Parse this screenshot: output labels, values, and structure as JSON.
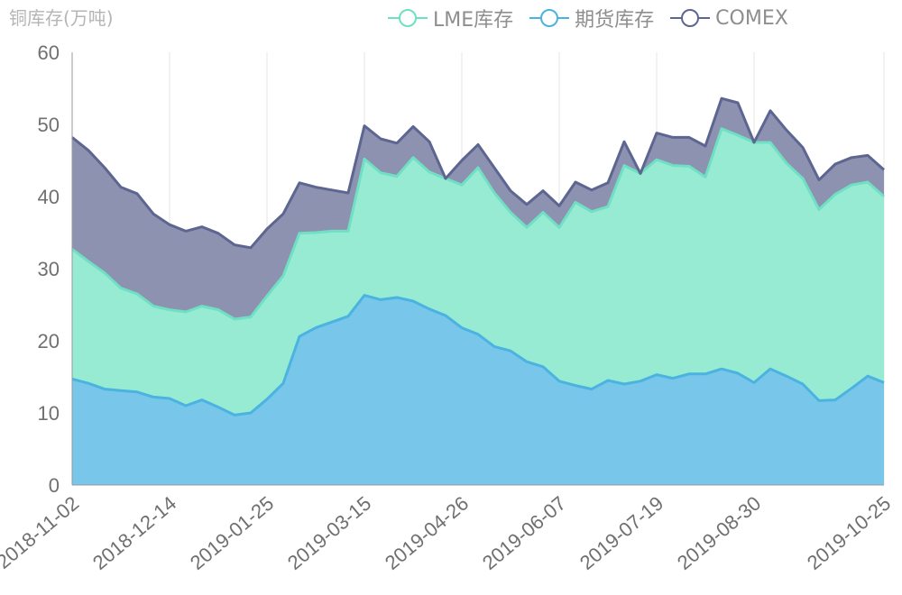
{
  "chart_data": {
    "type": "area",
    "title": "",
    "unit_label": "铜库存(万吨)",
    "ylabel": "",
    "xlabel": "",
    "ylim": [
      0,
      60
    ],
    "y_ticks": [
      0,
      10,
      20,
      30,
      40,
      50,
      60
    ],
    "x_tick_labels": [
      "2018-11-02",
      "2018-12-14",
      "2019-01-25",
      "2019-03-15",
      "2019-04-26",
      "2019-06-07",
      "2019-07-19",
      "2019-08-30",
      "2019-10-25"
    ],
    "x_tick_indices": [
      0,
      6,
      12,
      18,
      24,
      30,
      36,
      42,
      50
    ],
    "stacked": true,
    "grid": "vertical",
    "legend_position": "top-right",
    "series": [
      {
        "name": "期货库存",
        "color": "#4bb3e0",
        "fill": "#78c6ea",
        "values": [
          14.7,
          14.1,
          13.3,
          13.1,
          12.9,
          12.2,
          12.0,
          11.0,
          11.8,
          10.8,
          9.7,
          10.0,
          11.9,
          14.1,
          20.6,
          21.8,
          22.6,
          23.4,
          26.3,
          25.7,
          26.0,
          25.5,
          24.4,
          23.5,
          21.8,
          20.9,
          19.2,
          18.6,
          17.1,
          16.4,
          14.4,
          13.8,
          13.3,
          14.5,
          14.0,
          14.4,
          15.3,
          14.8,
          15.4,
          15.4,
          16.1,
          15.5,
          14.2,
          16.1,
          15.1,
          14.0,
          11.7,
          11.8,
          13.4,
          15.1,
          14.2
        ]
      },
      {
        "name": "LME库存",
        "color": "#6fe0c4",
        "fill": "#98ebd3",
        "values": [
          18.0,
          16.9,
          16.1,
          14.2,
          13.6,
          12.6,
          12.3,
          13.0,
          13.0,
          13.5,
          13.3,
          13.3,
          14.3,
          14.9,
          14.3,
          13.2,
          12.6,
          11.8,
          18.9,
          17.6,
          16.8,
          19.9,
          19.0,
          19.0,
          19.8,
          23.1,
          21.3,
          19.2,
          18.6,
          21.4,
          21.3,
          25.4,
          24.6,
          24.1,
          30.3,
          28.8,
          29.8,
          29.5,
          28.8,
          27.3,
          33.3,
          33.0,
          33.3,
          31.4,
          29.5,
          28.5,
          26.5,
          28.5,
          28.2,
          26.9,
          25.8
        ]
      },
      {
        "name": "COMEX",
        "color": "#5d6690",
        "fill": "#8d92b0",
        "values": [
          15.5,
          15.4,
          14.6,
          14.0,
          13.9,
          12.8,
          11.8,
          11.2,
          11.0,
          10.6,
          10.3,
          9.6,
          9.3,
          8.6,
          7.0,
          6.3,
          5.7,
          5.3,
          4.6,
          4.7,
          4.6,
          4.3,
          4.2,
          0.0,
          3.4,
          3.2,
          3.5,
          3.0,
          3.2,
          3.0,
          3.0,
          2.8,
          3.0,
          3.3,
          3.3,
          0.0,
          3.7,
          3.9,
          4.0,
          4.3,
          4.2,
          4.5,
          0.0,
          4.4,
          4.6,
          4.3,
          4.1,
          4.2,
          3.8,
          3.7,
          3.7
        ]
      }
    ]
  }
}
